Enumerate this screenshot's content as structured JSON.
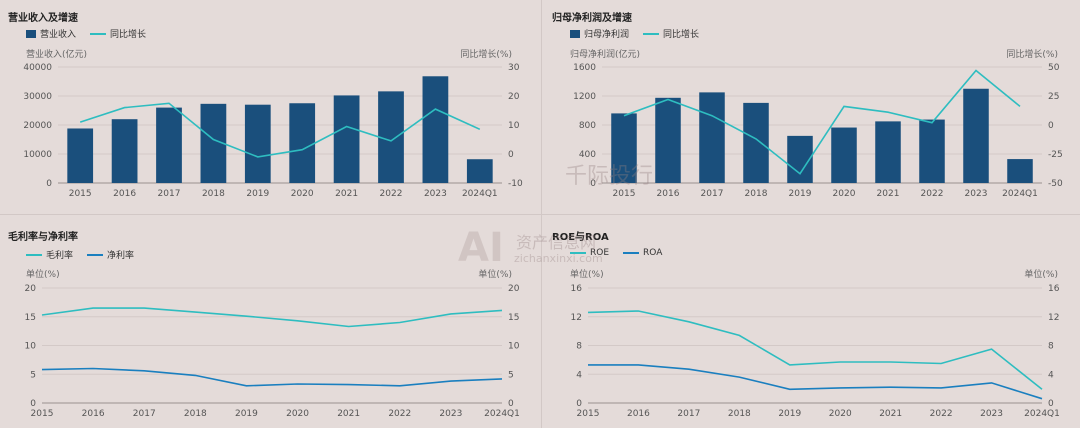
{
  "watermark": {
    "brand": "千际投行",
    "site_name": "资产信息网",
    "url": "zichanxinxi.com",
    "logo_text": "AI"
  },
  "chart_data": [
    {
      "type": "bar",
      "title": "营业收入及增速",
      "categories": [
        "2015",
        "2016",
        "2017",
        "2018",
        "2019",
        "2020",
        "2021",
        "2022",
        "2023",
        "2024Q1"
      ],
      "series": [
        {
          "name": "营业收入",
          "kind": "bar",
          "axis": "left",
          "color": "#1a4f7c",
          "values": [
            18800,
            22000,
            26000,
            27300,
            27000,
            27500,
            30200,
            31600,
            36800,
            8200
          ]
        },
        {
          "name": "同比增长",
          "kind": "line",
          "axis": "right",
          "color": "#2ebdc0",
          "values": [
            11,
            16,
            17.5,
            5,
            -1,
            1.5,
            9.5,
            4.5,
            15.5,
            8.5
          ]
        }
      ],
      "ylabel_left": "营业收入(亿元)",
      "ylabel_right": "同比增长(%)",
      "ylim_left": [
        0,
        40000
      ],
      "yticks_left": [
        0,
        10000,
        20000,
        30000,
        40000
      ],
      "ylim_right": [
        -10,
        30
      ],
      "yticks_right": [
        -10,
        0,
        10,
        20,
        30
      ],
      "legend": "top-left",
      "grid": true
    },
    {
      "type": "bar",
      "title": "归母净利润及增速",
      "categories": [
        "2015",
        "2016",
        "2017",
        "2018",
        "2019",
        "2020",
        "2021",
        "2022",
        "2023",
        "2024Q1"
      ],
      "series": [
        {
          "name": "归母净利润",
          "kind": "bar",
          "axis": "left",
          "color": "#1a4f7c",
          "values": [
            960,
            1175,
            1250,
            1105,
            650,
            765,
            850,
            875,
            1300,
            330
          ]
        },
        {
          "name": "同比增长",
          "kind": "line",
          "axis": "right",
          "color": "#2ebdc0",
          "values": [
            8,
            22,
            8,
            -12,
            -42,
            16,
            11,
            2,
            47,
            16
          ]
        }
      ],
      "ylabel_left": "归母净利润(亿元)",
      "ylabel_right": "同比增长(%)",
      "ylim_left": [
        0,
        1600
      ],
      "yticks_left": [
        0,
        400,
        800,
        1200,
        1600
      ],
      "ylim_right": [
        -50,
        50
      ],
      "yticks_right": [
        -50,
        -25,
        0,
        25,
        50
      ],
      "legend": "top-left",
      "grid": true
    },
    {
      "type": "line",
      "title": "毛利率与净利率",
      "x": [
        "2015",
        "2016",
        "2017",
        "2018",
        "2019",
        "2020",
        "2021",
        "2022",
        "2023",
        "2024Q1"
      ],
      "series": [
        {
          "name": "毛利率",
          "color": "#2ebdc0",
          "values": [
            15.3,
            16.5,
            16.5,
            15.8,
            15.1,
            14.3,
            13.3,
            14.0,
            15.5,
            16.1
          ]
        },
        {
          "name": "净利率",
          "color": "#1a7fbf",
          "values": [
            5.8,
            6.0,
            5.6,
            4.8,
            3.0,
            3.3,
            3.2,
            3.0,
            3.8,
            4.2
          ]
        }
      ],
      "ylabel_left": "单位(%)",
      "ylabel_right": "单位(%)",
      "ylim": [
        0,
        20
      ],
      "yticks": [
        0,
        5,
        10,
        15,
        20
      ],
      "legend": "top-left",
      "grid": true
    },
    {
      "type": "line",
      "title": "ROE与ROA",
      "x": [
        "2015",
        "2016",
        "2017",
        "2018",
        "2019",
        "2020",
        "2021",
        "2022",
        "2023",
        "2024Q1"
      ],
      "series": [
        {
          "name": "ROE",
          "color": "#2ebdc0",
          "values": [
            12.6,
            12.8,
            11.3,
            9.4,
            5.3,
            5.7,
            5.7,
            5.5,
            7.5,
            1.9
          ]
        },
        {
          "name": "ROA",
          "color": "#1a7fbf",
          "values": [
            5.3,
            5.3,
            4.7,
            3.6,
            1.9,
            2.1,
            2.2,
            2.1,
            2.8,
            0.6
          ]
        }
      ],
      "ylabel_left": "单位(%)",
      "ylabel_right": "单位(%)",
      "ylim": [
        0,
        16
      ],
      "yticks": [
        0,
        4,
        8,
        12,
        16
      ],
      "legend": "top-left",
      "grid": true
    }
  ]
}
